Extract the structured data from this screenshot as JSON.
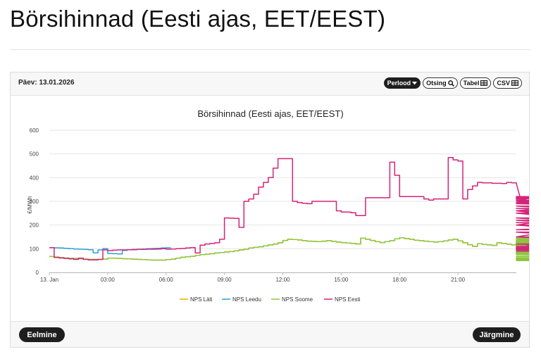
{
  "page": {
    "title": "Börsihinnad (Eesti ajas, EET/EEST)"
  },
  "header": {
    "date_label": "Päev: 13.01.2026",
    "buttons": [
      {
        "label": "Perlood",
        "icon": "caret-down-icon"
      },
      {
        "label": "Otsing",
        "icon": "search-icon"
      },
      {
        "label": "Tabel",
        "icon": "table-icon"
      },
      {
        "label": "CSV",
        "icon": "table-icon"
      }
    ]
  },
  "footer": {
    "prev_label": "Eelmine",
    "next_label": "Järgmine"
  },
  "chart_data": {
    "type": "line",
    "title": "Börsihinnad (Eesti ajas, EET/EEST)",
    "ylabel": "€/MWh",
    "xlabel": "",
    "ylim": [
      0,
      600
    ],
    "yticks": [
      0,
      100,
      200,
      300,
      400,
      500,
      600
    ],
    "xlim": [
      0,
      24
    ],
    "xticks": [
      {
        "value": 0,
        "label": "13. Jan"
      },
      {
        "value": 3,
        "label": "03:00"
      },
      {
        "value": 6,
        "label": "06:00"
      },
      {
        "value": 9,
        "label": "09:00"
      },
      {
        "value": 12,
        "label": "12:00"
      },
      {
        "value": 15,
        "label": "15:00"
      },
      {
        "value": 18,
        "label": "18:00"
      },
      {
        "value": 21,
        "label": "21:00"
      }
    ],
    "grid": true,
    "legend_position": "bottom",
    "step": 0.25,
    "series": [
      {
        "name": "NPS Läti",
        "color": "#e0b400",
        "values": [
          67,
          65,
          63,
          61,
          60,
          59,
          57,
          56,
          55,
          55,
          55,
          56,
          60,
          60,
          59,
          58,
          57,
          56,
          55,
          54,
          53,
          52,
          52,
          52,
          54,
          56,
          60,
          64,
          66,
          68,
          72,
          75,
          77,
          79,
          82,
          84,
          86,
          88,
          91,
          95,
          98,
          103,
          106,
          108,
          112,
          116,
          120,
          125,
          135,
          140,
          139,
          137,
          134,
          132,
          131,
          130,
          132,
          134,
          131,
          128,
          126,
          124,
          122,
          120,
          145,
          140,
          135,
          130,
          126,
          130,
          134,
          142,
          146,
          143,
          140,
          136,
          134,
          132,
          130,
          128,
          130,
          133,
          137,
          140,
          133,
          125,
          117,
          110,
          121,
          118,
          116,
          114,
          125,
          122,
          119,
          116,
          123,
          120,
          117,
          114,
          121,
          118,
          115,
          112,
          118,
          120,
          122,
          124,
          126,
          128,
          130,
          135,
          142,
          145,
          132,
          120,
          110,
          100,
          108,
          105,
          101,
          97,
          94,
          90,
          87,
          84,
          83,
          82,
          81,
          80,
          120,
          140,
          115,
          95,
          82,
          100,
          118,
          135,
          85,
          75,
          68,
          62,
          58,
          55,
          52,
          50
        ]
      },
      {
        "name": "NPS Leedu",
        "color": "#2f9fd6",
        "values": [
          105,
          104,
          103,
          102,
          100,
          99,
          98,
          97,
          96,
          83,
          95,
          100,
          80,
          79,
          78,
          93,
          96,
          97,
          98,
          99,
          100,
          101,
          102,
          103,
          104,
          95,
          96,
          97,
          98,
          99,
          100,
          101,
          102,
          103,
          104,
          105,
          106,
          107,
          108,
          109,
          110,
          111,
          112,
          113,
          114,
          115,
          116,
          117,
          118,
          119,
          120,
          121,
          122,
          123,
          124,
          125,
          126,
          127,
          128,
          129,
          130,
          131,
          132,
          133,
          134,
          135,
          136,
          137,
          138,
          139,
          140,
          141,
          142,
          143,
          144,
          145,
          146,
          147,
          148,
          149,
          150,
          151,
          152,
          153,
          154,
          155,
          156,
          157,
          158,
          159,
          160,
          161,
          162,
          163,
          164,
          165,
          166,
          167,
          168,
          169,
          170,
          171,
          172,
          173,
          174,
          175,
          176,
          177,
          178,
          179,
          180,
          181,
          182,
          183,
          184,
          185,
          186,
          187,
          188,
          189,
          190,
          191,
          192,
          193,
          194,
          195,
          196,
          197,
          198,
          199,
          200,
          201,
          202,
          203,
          204,
          205,
          206,
          207,
          208,
          209,
          210,
          211,
          212,
          213,
          214,
          215
        ]
      },
      {
        "name": "NPS Soome",
        "color": "#8cc63f",
        "values": [
          67,
          65,
          63,
          61,
          60,
          59,
          57,
          56,
          55,
          55,
          55,
          56,
          60,
          60,
          59,
          58,
          57,
          56,
          55,
          54,
          53,
          52,
          52,
          52,
          54,
          56,
          60,
          64,
          66,
          68,
          72,
          75,
          77,
          79,
          82,
          84,
          86,
          88,
          91,
          95,
          98,
          103,
          106,
          108,
          112,
          116,
          120,
          125,
          135,
          140,
          139,
          137,
          134,
          132,
          131,
          130,
          132,
          134,
          131,
          128,
          126,
          124,
          122,
          120,
          145,
          140,
          135,
          130,
          126,
          130,
          134,
          142,
          146,
          143,
          140,
          136,
          134,
          132,
          130,
          128,
          130,
          133,
          137,
          140,
          133,
          125,
          117,
          110,
          121,
          118,
          116,
          114,
          125,
          122,
          119,
          116,
          123,
          120,
          117,
          114,
          121,
          118,
          115,
          112,
          118,
          120,
          122,
          124,
          126,
          128,
          130,
          135,
          142,
          145,
          132,
          120,
          110,
          100,
          108,
          105,
          101,
          97,
          94,
          90,
          87,
          84,
          83,
          82,
          81,
          80,
          120,
          140,
          115,
          95,
          82,
          100,
          118,
          135,
          85,
          75,
          68,
          62,
          58,
          55,
          52,
          50
        ]
      },
      {
        "name": "NPS Eesti",
        "color": "#d4237a",
        "values": [
          105,
          63,
          61,
          59,
          57,
          55,
          60,
          55,
          53,
          53,
          55,
          95,
          92,
          94,
          95,
          95,
          96,
          96,
          97,
          97,
          98,
          98,
          99,
          100,
          98,
          99,
          100,
          101,
          103,
          105,
          82,
          115,
          120,
          122,
          125,
          140,
          230,
          229,
          228,
          190,
          300,
          310,
          330,
          360,
          380,
          400,
          440,
          480,
          480,
          480,
          300,
          295,
          292,
          290,
          300,
          300,
          300,
          300,
          300,
          260,
          255,
          255,
          252,
          240,
          240,
          315,
          315,
          315,
          315,
          315,
          465,
          410,
          320,
          320,
          320,
          320,
          320,
          310,
          305,
          310,
          310,
          310,
          485,
          475,
          470,
          310,
          350,
          365,
          380,
          378,
          378,
          376,
          376,
          375,
          380,
          378,
          375,
          300,
          310,
          312,
          312,
          314,
          314,
          316,
          314,
          312,
          318,
          316,
          305,
          300,
          305,
          295,
          290,
          280,
          260,
          300,
          320,
          290,
          280,
          250,
          200,
          270,
          260,
          250,
          220,
          180,
          210,
          200,
          150,
          260,
          170,
          120,
          100,
          300,
          300,
          250,
          260,
          230,
          170,
          150,
          110,
          105,
          100,
          98,
          95,
          90
        ]
      }
    ]
  }
}
